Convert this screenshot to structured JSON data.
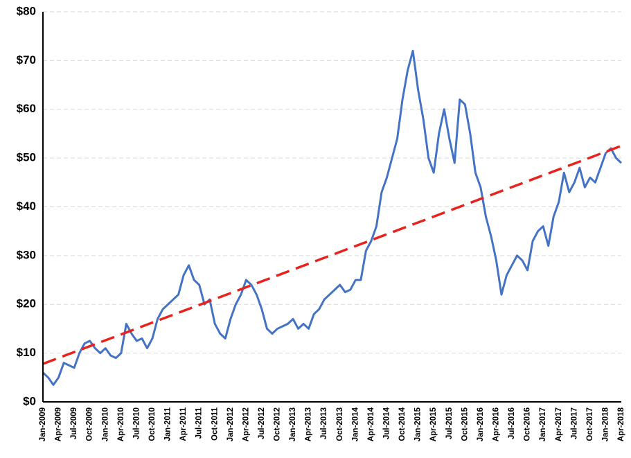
{
  "chart_data": {
    "type": "line",
    "categories": [
      "Jan-2009",
      null,
      null,
      "Apr-2009",
      null,
      null,
      "Jul-2009",
      null,
      null,
      "Oct-2009",
      null,
      null,
      "Jan-2010",
      null,
      null,
      "Apr-2010",
      null,
      null,
      "Jul-2010",
      null,
      null,
      "Oct-2010",
      null,
      null,
      "Jan-2011",
      null,
      null,
      "Apr-2011",
      null,
      null,
      "Jul-2011",
      null,
      null,
      "Oct-2011",
      null,
      null,
      "Jan-2012",
      null,
      null,
      "Apr-2012",
      null,
      null,
      "Jul-2012",
      null,
      null,
      "Oct-2012",
      null,
      null,
      "Jan-2013",
      null,
      null,
      "Apr-2013",
      null,
      null,
      "Jul-2013",
      null,
      null,
      "Oct-2013",
      null,
      null,
      "Jan-2014",
      null,
      null,
      "Apr-2014",
      null,
      null,
      "Jul-2014",
      null,
      null,
      "Oct-2014",
      null,
      null,
      "Jan-2015",
      null,
      null,
      "Apr-2015",
      null,
      null,
      "Jul-2015",
      null,
      null,
      "Oct-2015",
      null,
      null,
      "Jan-2016",
      null,
      null,
      "Apr-2016",
      null,
      null,
      "Jul-2016",
      null,
      null,
      "Oct-2016",
      null,
      null,
      "Jan-2017",
      null,
      null,
      "Apr-2017",
      null,
      null,
      "Jul-2017",
      null,
      null,
      "Oct-2017",
      null,
      null,
      "Jan-2018",
      null,
      null,
      "Apr-2018"
    ],
    "series": [
      {
        "color": "#4472c4",
        "values": [
          6,
          5,
          3.5,
          5,
          8,
          7.5,
          7,
          10,
          12,
          12.5,
          11,
          10,
          11,
          9.5,
          9,
          10,
          16,
          14,
          12.5,
          13,
          11,
          13,
          17,
          19,
          20,
          21,
          22,
          26,
          28,
          25,
          24,
          20,
          21,
          16,
          14,
          13,
          17,
          20,
          22,
          25,
          24,
          22,
          19,
          15,
          14,
          15,
          15.5,
          16,
          17,
          15,
          16,
          15,
          18,
          19,
          21,
          22,
          23,
          24,
          22.5,
          23,
          25,
          25,
          31,
          33,
          36,
          43,
          46,
          50,
          54,
          62,
          68,
          72,
          64,
          58,
          50,
          47,
          55,
          60,
          54,
          49,
          62,
          61,
          55,
          47,
          44,
          38,
          34,
          29,
          22,
          26,
          28,
          30,
          29,
          27,
          33,
          35,
          36,
          32,
          38,
          41,
          47,
          43,
          45,
          48,
          44,
          46,
          45,
          48,
          51,
          52,
          50,
          49
        ]
      }
    ],
    "trendline": {
      "start": 7.8,
      "end": 52.5,
      "color": "#e8221c"
    },
    "ylim": [
      0,
      80
    ],
    "yticks": [
      {
        "value": 0,
        "label": "$0"
      },
      {
        "value": 10,
        "label": "$10"
      },
      {
        "value": 20,
        "label": "$20"
      },
      {
        "value": 30,
        "label": "$30"
      },
      {
        "value": 40,
        "label": "$40"
      },
      {
        "value": 50,
        "label": "$50"
      },
      {
        "value": 60,
        "label": "$60"
      },
      {
        "value": 70,
        "label": "$70"
      },
      {
        "value": 80,
        "label": "$80"
      }
    ],
    "grid": true
  }
}
